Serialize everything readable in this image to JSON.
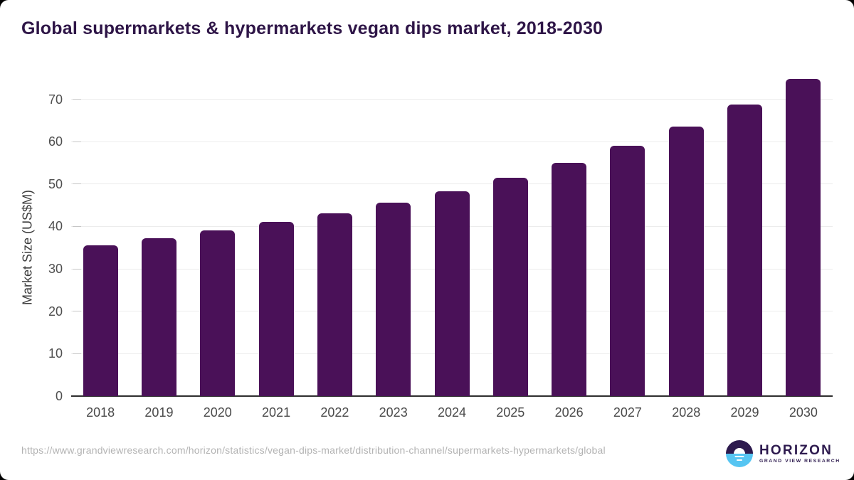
{
  "header": {
    "title": "Global supermarkets & hypermarkets vegan dips market, 2018-2030",
    "title_color": "#2e1547"
  },
  "chart_data": {
    "type": "bar",
    "categories": [
      "2018",
      "2019",
      "2020",
      "2021",
      "2022",
      "2023",
      "2024",
      "2025",
      "2026",
      "2027",
      "2028",
      "2029",
      "2030"
    ],
    "values": [
      35.5,
      37.2,
      39.0,
      41.0,
      43.1,
      45.6,
      48.3,
      51.5,
      55.0,
      59.0,
      63.5,
      68.7,
      74.8
    ],
    "title": "Global supermarkets & hypermarkets vegan dips market, 2018-2030",
    "xlabel": "",
    "ylabel": "Market Size (US$M)",
    "ylim": [
      0,
      75
    ],
    "yticks": [
      0,
      10,
      20,
      30,
      40,
      50,
      60,
      70
    ],
    "grid": true,
    "legend": "none",
    "bar_color": "#4a1158",
    "gridline_color": "#ececec",
    "axis_line_color": "#2e2e2e",
    "tick_label_color": "#4f4f4f"
  },
  "footer": {
    "source_url": "https://www.grandviewresearch.com/horizon/statistics/vegan-dips-market/distribution-channel/supermarkets-hypermarkets/global",
    "logo": {
      "brand": "HORIZON",
      "subbrand": "GRAND VIEW RESEARCH",
      "purple": "#2d1a4e",
      "blue": "#56c5f2"
    }
  }
}
